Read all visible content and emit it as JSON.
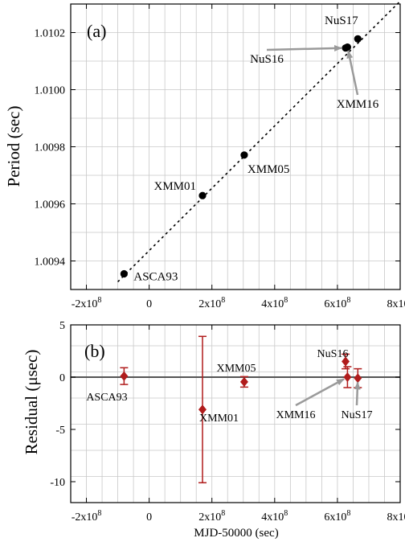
{
  "chart_data": [
    {
      "type": "scatter",
      "panel_label": "(a)",
      "xlabel": "",
      "ylabel": "Period (sec)",
      "xlim": [
        -250000000,
        800000000
      ],
      "ylim": [
        1.0093,
        1.0103
      ],
      "xticks": [
        {
          "value": -200000000,
          "mant": "-2x10",
          "exp": "8"
        },
        {
          "value": 0,
          "mant": "0",
          "exp": ""
        },
        {
          "value": 200000000,
          "mant": "2x10",
          "exp": "8"
        },
        {
          "value": 400000000,
          "mant": "4x10",
          "exp": "8"
        },
        {
          "value": 600000000,
          "mant": "6x10",
          "exp": "8"
        },
        {
          "value": 800000000,
          "mant": "8x10",
          "exp": "8"
        }
      ],
      "yticks": [
        {
          "value": 1.0094,
          "label": "1.0094"
        },
        {
          "value": 1.0096,
          "label": "1.0096"
        },
        {
          "value": 1.0098,
          "label": "1.0098"
        },
        {
          "value": 1.01,
          "label": "1.0100"
        },
        {
          "value": 1.0102,
          "label": "1.0102"
        }
      ],
      "grid": true,
      "series": [
        {
          "points": [
            {
              "label": "ASCA93",
              "x": -80000000,
              "y": 1.009355
            },
            {
              "label": "XMM01",
              "x": 170000000,
              "y": 1.009629
            },
            {
              "label": "XMM05",
              "x": 303000000,
              "y": 1.009771
            },
            {
              "label": "NuS16",
              "x": 626000000,
              "y": 1.010146
            },
            {
              "label": "XMM16",
              "x": 632000000,
              "y": 1.010149
            },
            {
              "label": "NuS17",
              "x": 665000000,
              "y": 1.010178
            }
          ]
        }
      ],
      "fit_line": {
        "x": [
          -100000000,
          800000000
        ],
        "y": [
          1.009327,
          1.01031
        ]
      }
    },
    {
      "type": "scatter",
      "panel_label": "(b)",
      "xlabel": "MJD-50000 (sec)",
      "ylabel": "Residual (μsec)",
      "xlim": [
        -250000000,
        800000000
      ],
      "ylim": [
        -12,
        5
      ],
      "xticks": [
        {
          "value": -200000000,
          "mant": "-2x10",
          "exp": "8"
        },
        {
          "value": 0,
          "mant": "0",
          "exp": ""
        },
        {
          "value": 200000000,
          "mant": "2x10",
          "exp": "8"
        },
        {
          "value": 400000000,
          "mant": "4x10",
          "exp": "8"
        },
        {
          "value": 600000000,
          "mant": "6x10",
          "exp": "8"
        },
        {
          "value": 800000000,
          "mant": "8x10",
          "exp": "8"
        }
      ],
      "yticks": [
        {
          "value": 5,
          "label": "5"
        },
        {
          "value": 0,
          "label": "0"
        },
        {
          "value": -5,
          "label": "-5"
        },
        {
          "value": -10,
          "label": "-10"
        }
      ],
      "grid": true,
      "zero_line": 0,
      "series": [
        {
          "color": "#b01c1c",
          "points": [
            {
              "label": "ASCA93",
              "x": -80000000,
              "y": 0.1,
              "err": 0.8
            },
            {
              "label": "XMM01",
              "x": 170000000,
              "y": -3.1,
              "err": 7.0
            },
            {
              "label": "XMM05",
              "x": 303000000,
              "y": -0.45,
              "err": 0.5
            },
            {
              "label": "NuS16",
              "x": 626000000,
              "y": 1.5,
              "err": 0.7
            },
            {
              "label": "XMM16",
              "x": 632000000,
              "y": 0.0,
              "err": 1.0
            },
            {
              "label": "NuS17",
              "x": 665000000,
              "y": -0.1,
              "err": 0.9
            }
          ]
        }
      ]
    }
  ]
}
